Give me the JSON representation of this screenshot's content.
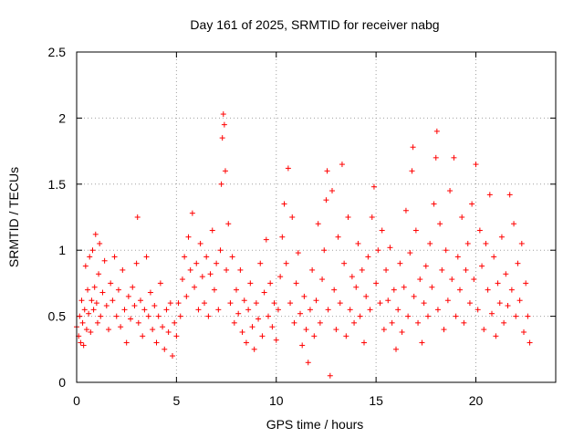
{
  "chart_data": {
    "type": "scatter",
    "title": "Day 161 of 2025, SRMTID for receiver nabg",
    "xlabel": "GPS time / hours",
    "ylabel": "SRMTID / TECUs",
    "xlim": [
      0,
      24
    ],
    "ylim": [
      0,
      2.5
    ],
    "xticks": [
      0,
      5,
      10,
      15,
      20
    ],
    "yticks": [
      0,
      0.5,
      1,
      1.5,
      2,
      2.5
    ],
    "xtick_labels": [
      "0",
      "5",
      "10",
      "15",
      "20"
    ],
    "ytick_labels": [
      "0",
      "0.5",
      "1",
      "1.5",
      "2",
      "2.5"
    ],
    "grid": true,
    "marker": "plus",
    "color": "#ff0000",
    "series": [
      {
        "name": "SRMTID",
        "points": [
          [
            0.0,
            0.42
          ],
          [
            0.1,
            0.35
          ],
          [
            0.15,
            0.5
          ],
          [
            0.2,
            0.3
          ],
          [
            0.25,
            0.62
          ],
          [
            0.3,
            0.45
          ],
          [
            0.35,
            0.28
          ],
          [
            0.4,
            0.55
          ],
          [
            0.45,
            0.88
          ],
          [
            0.5,
            0.4
          ],
          [
            0.55,
            0.7
          ],
          [
            0.6,
            0.52
          ],
          [
            0.65,
            0.95
          ],
          [
            0.7,
            0.38
          ],
          [
            0.75,
            0.62
          ],
          [
            0.8,
            1.0
          ],
          [
            0.85,
            0.55
          ],
          [
            0.9,
            0.72
          ],
          [
            0.95,
            1.12
          ],
          [
            1.0,
            0.6
          ],
          [
            1.05,
            0.45
          ],
          [
            1.1,
            0.82
          ],
          [
            1.15,
            1.05
          ],
          [
            1.2,
            0.5
          ],
          [
            1.3,
            0.68
          ],
          [
            1.4,
            0.92
          ],
          [
            1.5,
            0.58
          ],
          [
            1.6,
            0.4
          ],
          [
            1.7,
            0.75
          ],
          [
            1.8,
            0.62
          ],
          [
            1.9,
            0.95
          ],
          [
            2.0,
            0.5
          ],
          [
            2.1,
            0.7
          ],
          [
            2.2,
            0.42
          ],
          [
            2.3,
            0.85
          ],
          [
            2.4,
            0.55
          ],
          [
            2.5,
            0.3
          ],
          [
            2.6,
            0.65
          ],
          [
            2.7,
            0.48
          ],
          [
            2.8,
            0.72
          ],
          [
            2.9,
            0.58
          ],
          [
            3.0,
            0.9
          ],
          [
            3.05,
            1.25
          ],
          [
            3.1,
            0.45
          ],
          [
            3.2,
            0.62
          ],
          [
            3.3,
            0.35
          ],
          [
            3.4,
            0.55
          ],
          [
            3.5,
            0.95
          ],
          [
            3.6,
            0.5
          ],
          [
            3.7,
            0.68
          ],
          [
            3.8,
            0.4
          ],
          [
            3.9,
            0.58
          ],
          [
            4.0,
            0.3
          ],
          [
            4.1,
            0.5
          ],
          [
            4.2,
            0.75
          ],
          [
            4.3,
            0.42
          ],
          [
            4.4,
            0.25
          ],
          [
            4.5,
            0.55
          ],
          [
            4.6,
            0.38
          ],
          [
            4.7,
            0.6
          ],
          [
            4.8,
            0.2
          ],
          [
            4.9,
            0.45
          ],
          [
            5.0,
            0.35
          ],
          [
            5.1,
            0.6
          ],
          [
            5.2,
            0.5
          ],
          [
            5.3,
            0.78
          ],
          [
            5.4,
            0.95
          ],
          [
            5.5,
            0.65
          ],
          [
            5.6,
            1.1
          ],
          [
            5.7,
            0.85
          ],
          [
            5.8,
            1.28
          ],
          [
            5.9,
            0.72
          ],
          [
            6.0,
            0.9
          ],
          [
            6.1,
            0.55
          ],
          [
            6.2,
            1.05
          ],
          [
            6.3,
            0.8
          ],
          [
            6.4,
            0.6
          ],
          [
            6.5,
            0.95
          ],
          [
            6.6,
            0.5
          ],
          [
            6.7,
            0.82
          ],
          [
            6.8,
            1.15
          ],
          [
            6.9,
            0.7
          ],
          [
            7.0,
            0.9
          ],
          [
            7.1,
            0.55
          ],
          [
            7.2,
            1.0
          ],
          [
            7.25,
            1.5
          ],
          [
            7.3,
            1.85
          ],
          [
            7.35,
            2.03
          ],
          [
            7.4,
            1.95
          ],
          [
            7.45,
            1.6
          ],
          [
            7.5,
            0.85
          ],
          [
            7.6,
            1.2
          ],
          [
            7.7,
            0.6
          ],
          [
            7.8,
            0.95
          ],
          [
            7.9,
            0.45
          ],
          [
            8.0,
            0.7
          ],
          [
            8.1,
            0.52
          ],
          [
            8.2,
            0.85
          ],
          [
            8.3,
            0.38
          ],
          [
            8.4,
            0.62
          ],
          [
            8.5,
            0.3
          ],
          [
            8.6,
            0.55
          ],
          [
            8.7,
            0.75
          ],
          [
            8.8,
            0.42
          ],
          [
            8.9,
            0.25
          ],
          [
            9.0,
            0.6
          ],
          [
            9.1,
            0.48
          ],
          [
            9.2,
            0.9
          ],
          [
            9.3,
            0.35
          ],
          [
            9.4,
            0.68
          ],
          [
            9.5,
            1.08
          ],
          [
            9.6,
            0.5
          ],
          [
            9.7,
            0.75
          ],
          [
            9.8,
            0.42
          ],
          [
            9.9,
            0.6
          ],
          [
            10.0,
            0.32
          ],
          [
            10.1,
            0.55
          ],
          [
            10.2,
            0.8
          ],
          [
            10.3,
            1.1
          ],
          [
            10.4,
            1.35
          ],
          [
            10.5,
            0.9
          ],
          [
            10.6,
            1.62
          ],
          [
            10.7,
            0.6
          ],
          [
            10.8,
            1.25
          ],
          [
            10.9,
            0.45
          ],
          [
            11.0,
            0.75
          ],
          [
            11.1,
            0.98
          ],
          [
            11.2,
            0.52
          ],
          [
            11.3,
            0.28
          ],
          [
            11.4,
            0.65
          ],
          [
            11.5,
            0.4
          ],
          [
            11.6,
            0.15
          ],
          [
            11.7,
            0.55
          ],
          [
            11.8,
            0.85
          ],
          [
            11.9,
            0.35
          ],
          [
            12.0,
            0.62
          ],
          [
            12.1,
            1.2
          ],
          [
            12.2,
            0.45
          ],
          [
            12.3,
            0.78
          ],
          [
            12.4,
            1.0
          ],
          [
            12.5,
            1.38
          ],
          [
            12.55,
            1.6
          ],
          [
            12.6,
            0.55
          ],
          [
            12.7,
            0.05
          ],
          [
            12.8,
            1.45
          ],
          [
            12.9,
            0.7
          ],
          [
            13.0,
            0.4
          ],
          [
            13.1,
            1.1
          ],
          [
            13.2,
            0.6
          ],
          [
            13.3,
            1.65
          ],
          [
            13.4,
            0.9
          ],
          [
            13.5,
            0.35
          ],
          [
            13.6,
            1.25
          ],
          [
            13.7,
            0.55
          ],
          [
            13.8,
            0.8
          ],
          [
            13.9,
            0.45
          ],
          [
            14.0,
            0.72
          ],
          [
            14.1,
            1.05
          ],
          [
            14.2,
            0.5
          ],
          [
            14.3,
            0.85
          ],
          [
            14.4,
            0.3
          ],
          [
            14.5,
            0.65
          ],
          [
            14.6,
            0.95
          ],
          [
            14.7,
            0.55
          ],
          [
            14.8,
            1.25
          ],
          [
            14.9,
            1.48
          ],
          [
            15.0,
            0.75
          ],
          [
            15.1,
            1.0
          ],
          [
            15.2,
            0.6
          ],
          [
            15.3,
            1.15
          ],
          [
            15.4,
            0.4
          ],
          [
            15.5,
            0.85
          ],
          [
            15.6,
            0.62
          ],
          [
            15.7,
            1.02
          ],
          [
            15.8,
            0.45
          ],
          [
            15.9,
            0.7
          ],
          [
            16.0,
            0.25
          ],
          [
            16.1,
            0.55
          ],
          [
            16.2,
            0.9
          ],
          [
            16.3,
            0.38
          ],
          [
            16.4,
            0.72
          ],
          [
            16.5,
            1.3
          ],
          [
            16.6,
            0.5
          ],
          [
            16.7,
            0.98
          ],
          [
            16.8,
            1.6
          ],
          [
            16.85,
            1.78
          ],
          [
            16.9,
            0.65
          ],
          [
            17.0,
            1.15
          ],
          [
            17.1,
            0.45
          ],
          [
            17.2,
            0.78
          ],
          [
            17.3,
            0.3
          ],
          [
            17.4,
            0.6
          ],
          [
            17.5,
            0.88
          ],
          [
            17.6,
            0.5
          ],
          [
            17.7,
            1.05
          ],
          [
            17.8,
            0.72
          ],
          [
            17.9,
            1.35
          ],
          [
            18.0,
            1.7
          ],
          [
            18.05,
            1.9
          ],
          [
            18.1,
            0.55
          ],
          [
            18.2,
            1.2
          ],
          [
            18.3,
            0.85
          ],
          [
            18.4,
            0.4
          ],
          [
            18.5,
            1.0
          ],
          [
            18.6,
            0.62
          ],
          [
            18.7,
            1.45
          ],
          [
            18.8,
            0.78
          ],
          [
            18.9,
            1.7
          ],
          [
            19.0,
            0.5
          ],
          [
            19.1,
            0.95
          ],
          [
            19.2,
            0.7
          ],
          [
            19.3,
            1.25
          ],
          [
            19.4,
            0.45
          ],
          [
            19.5,
            0.85
          ],
          [
            19.6,
            1.05
          ],
          [
            19.7,
            0.6
          ],
          [
            19.8,
            1.35
          ],
          [
            19.9,
            0.78
          ],
          [
            20.0,
            1.65
          ],
          [
            20.1,
            0.55
          ],
          [
            20.2,
            1.15
          ],
          [
            20.3,
            0.88
          ],
          [
            20.4,
            0.4
          ],
          [
            20.5,
            1.05
          ],
          [
            20.6,
            0.7
          ],
          [
            20.7,
            1.42
          ],
          [
            20.8,
            0.52
          ],
          [
            20.9,
            0.95
          ],
          [
            21.0,
            0.35
          ],
          [
            21.1,
            0.75
          ],
          [
            21.2,
            0.6
          ],
          [
            21.3,
            1.1
          ],
          [
            21.4,
            0.45
          ],
          [
            21.5,
            0.82
          ],
          [
            21.6,
            0.58
          ],
          [
            21.7,
            1.42
          ],
          [
            21.8,
            0.7
          ],
          [
            21.9,
            1.2
          ],
          [
            22.0,
            0.5
          ],
          [
            22.1,
            0.9
          ],
          [
            22.2,
            0.62
          ],
          [
            22.3,
            1.05
          ],
          [
            22.4,
            0.38
          ],
          [
            22.5,
            0.75
          ],
          [
            22.6,
            0.5
          ],
          [
            22.7,
            0.3
          ]
        ]
      }
    ]
  }
}
